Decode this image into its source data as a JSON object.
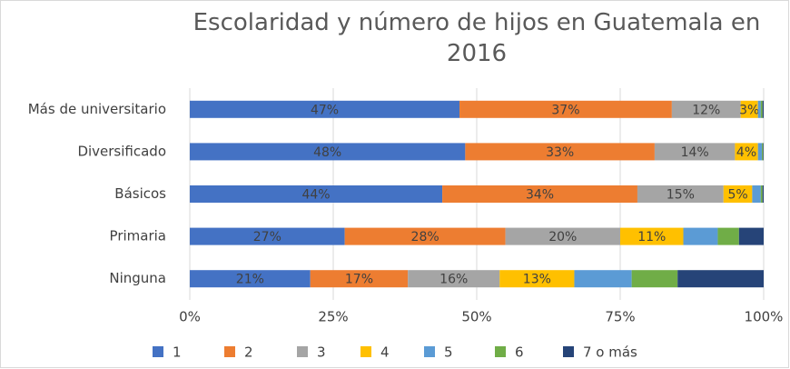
{
  "chart_data": {
    "type": "stacked_bar_horizontal",
    "title": "Escolaridad y número de hijos en Guatemala en 2016",
    "categories": [
      "Más de universitario",
      "Diversificado",
      "Básicos",
      "Primaria",
      "Ninguna"
    ],
    "series": [
      {
        "name": "1",
        "color": "#4472c4",
        "values": [
          47,
          48,
          44,
          27,
          21
        ],
        "value_labels": [
          "47%",
          "48%",
          "44%",
          "27%",
          "21%"
        ]
      },
      {
        "name": "2",
        "color": "#ed7d31",
        "values": [
          37,
          33,
          34,
          28,
          17
        ],
        "value_labels": [
          "37%",
          "33%",
          "34%",
          "28%",
          "17%"
        ]
      },
      {
        "name": "3",
        "color": "#a5a5a5",
        "values": [
          12,
          14,
          15,
          20,
          16
        ],
        "value_labels": [
          "12%",
          "14%",
          "15%",
          "20%",
          "16%"
        ]
      },
      {
        "name": "4",
        "color": "#ffc000",
        "values": [
          3,
          4,
          5,
          11,
          13
        ],
        "value_labels": [
          "3%",
          "4%",
          "5%",
          "11%",
          "13%"
        ]
      },
      {
        "name": "5",
        "color": "#5b9bd5",
        "values": [
          0.5,
          0.7,
          1.5,
          6,
          10
        ]
      },
      {
        "name": "6",
        "color": "#70ad47",
        "values": [
          0.3,
          0.2,
          0.3,
          3.7,
          8
        ]
      },
      {
        "name": "7 o más",
        "color": "#264478",
        "values": [
          0.2,
          0.1,
          0.2,
          4.3,
          15
        ]
      }
    ],
    "xlim": [
      0,
      100
    ],
    "xticks": [
      {
        "value": 0,
        "label": "0%"
      },
      {
        "value": 25,
        "label": "25%"
      },
      {
        "value": 50,
        "label": "50%"
      },
      {
        "value": 75,
        "label": "75%"
      },
      {
        "value": 100,
        "label": "100%"
      }
    ],
    "grid": true,
    "legend": "bottom"
  }
}
